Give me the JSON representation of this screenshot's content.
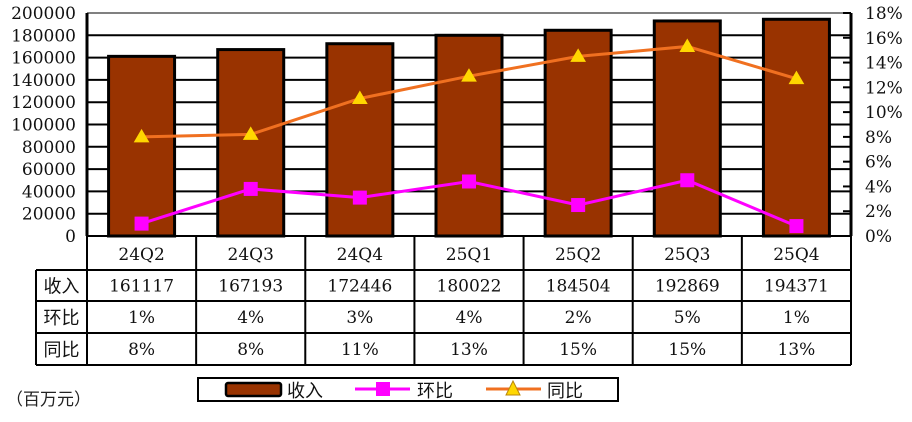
{
  "chart_data": {
    "type": "bar",
    "title": "",
    "unit_note": "（百万元）",
    "categories": [
      "24Q2",
      "24Q3",
      "24Q4",
      "25Q1",
      "25Q2",
      "25Q3",
      "25Q4"
    ],
    "series": [
      {
        "name": "收入",
        "type": "bar",
        "axis": "left",
        "color": "#993300",
        "values": [
          161117,
          167193,
          172446,
          180022,
          184504,
          192869,
          194371
        ]
      },
      {
        "name": "环比",
        "type": "line",
        "axis": "right",
        "color": "#ff00ff",
        "marker": "square",
        "values": [
          1.0,
          3.8,
          3.1,
          4.4,
          2.5,
          4.5,
          0.8
        ]
      },
      {
        "name": "同比",
        "type": "line",
        "axis": "right",
        "color": "#f07020",
        "marker": "triangle",
        "marker_color": "#ffd700",
        "values": [
          8.0,
          8.2,
          11.1,
          12.9,
          14.5,
          15.3,
          12.7
        ]
      }
    ],
    "left_axis": {
      "min": 0,
      "max": 200000,
      "step": 20000,
      "ticks": [
        "0",
        "20000",
        "40000",
        "60000",
        "80000",
        "100000",
        "120000",
        "140000",
        "160000",
        "180000",
        "200000"
      ]
    },
    "right_axis": {
      "min": 0,
      "max": 18,
      "step": 2,
      "ticks": [
        "0%",
        "2%",
        "4%",
        "6%",
        "8%",
        "10%",
        "12%",
        "14%",
        "16%",
        "18%"
      ]
    },
    "grid": true,
    "legend_position": "bottom",
    "data_table": {
      "rows": [
        {
          "label": "收入",
          "values": [
            "161117",
            "167193",
            "172446",
            "180022",
            "184504",
            "192869",
            "194371"
          ]
        },
        {
          "label": "环比",
          "values": [
            "1%",
            "4%",
            "3%",
            "4%",
            "2%",
            "5%",
            "1%"
          ]
        },
        {
          "label": "同比",
          "values": [
            "8%",
            "8%",
            "11%",
            "13%",
            "15%",
            "15%",
            "13%"
          ]
        }
      ]
    },
    "legend": [
      {
        "label": "收入",
        "kind": "bar"
      },
      {
        "label": "环比",
        "kind": "line-square"
      },
      {
        "label": "同比",
        "kind": "line-triangle"
      }
    ]
  }
}
